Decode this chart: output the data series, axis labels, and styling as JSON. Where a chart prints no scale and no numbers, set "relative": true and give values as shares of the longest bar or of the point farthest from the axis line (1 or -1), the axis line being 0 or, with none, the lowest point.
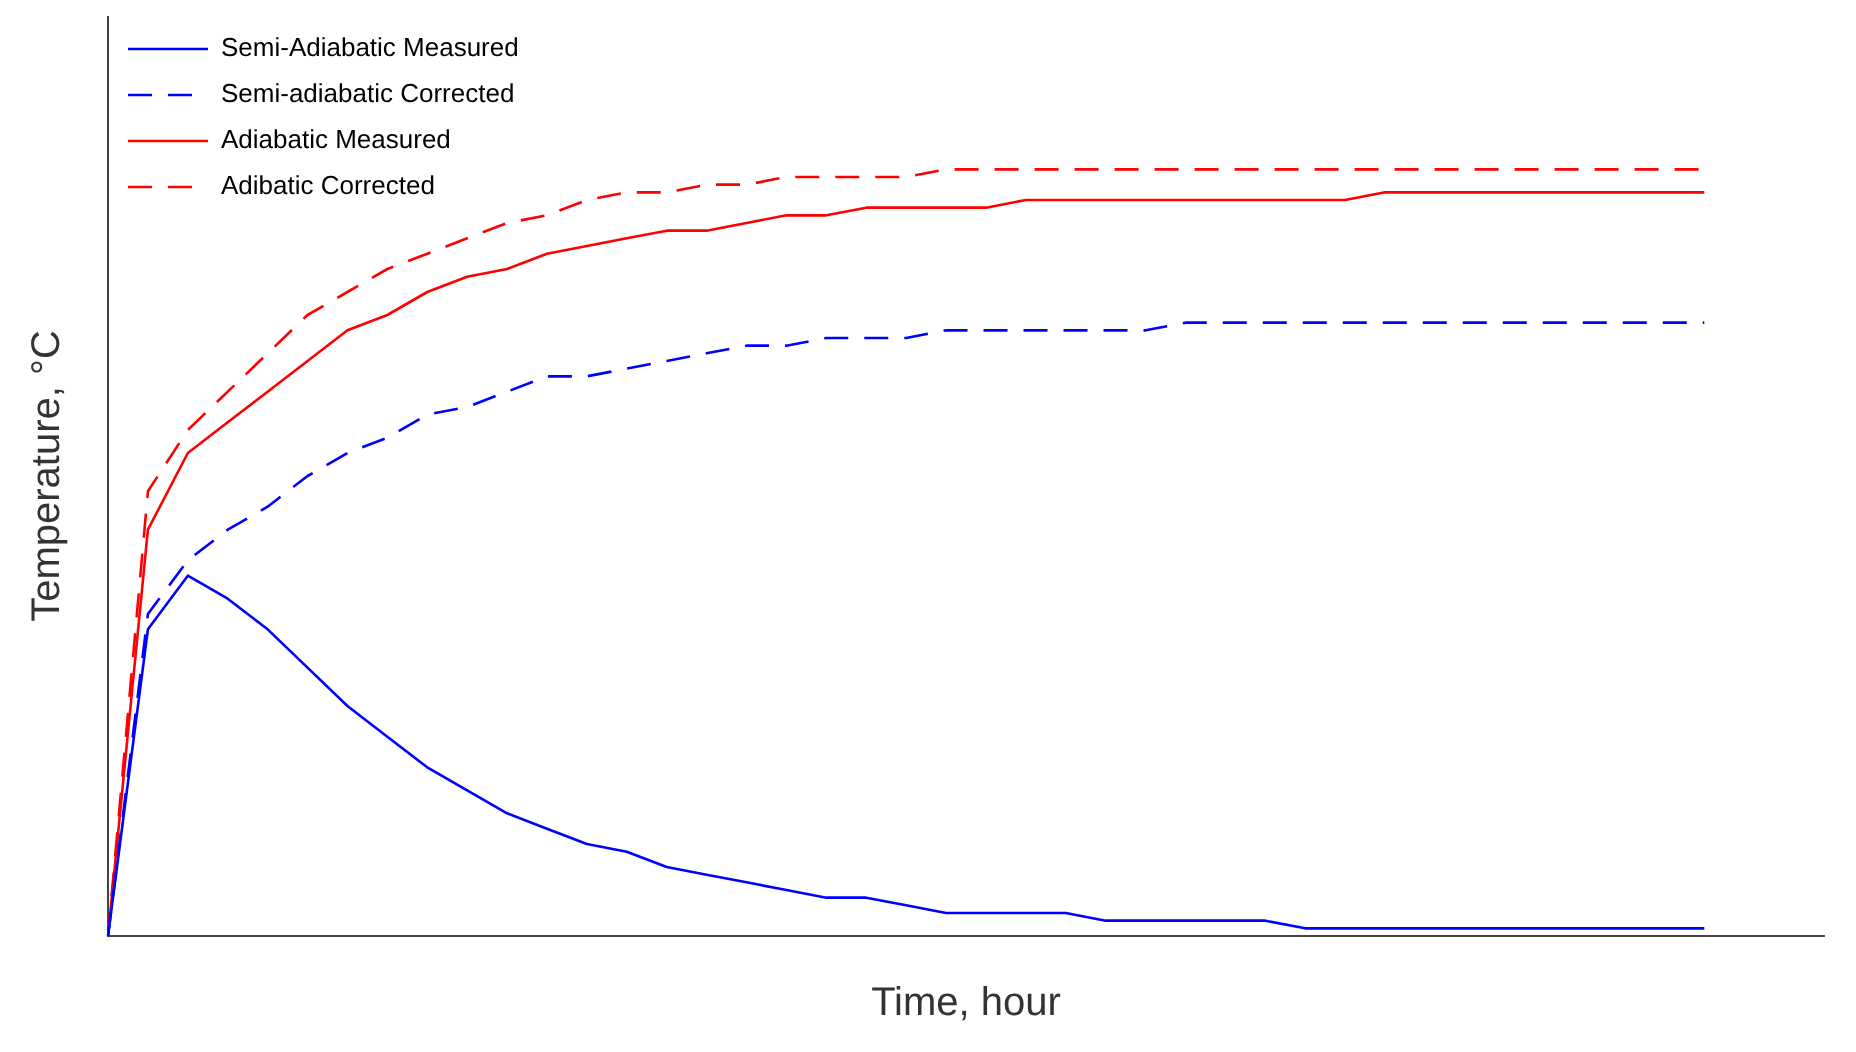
{
  "chart_data": {
    "type": "line",
    "relative": true,
    "xlabel": "Time, hour",
    "ylabel": "Temperature, °C",
    "legend": "top left",
    "grid": false,
    "marker": "none",
    "categories": [
      null,
      null,
      null,
      null,
      null,
      null,
      null,
      null,
      null,
      null,
      null,
      null,
      null,
      null,
      null,
      null,
      null,
      null,
      null,
      null,
      null,
      null,
      null,
      null,
      null,
      null,
      null,
      null,
      null,
      null,
      null,
      null,
      null,
      null,
      null,
      null,
      null,
      null,
      null,
      null,
      null,
      null,
      null,
      null
    ],
    "series": [
      {
        "name": "Semi-Adiabatic Measured",
        "color": "#0000ff",
        "line_style": "solid",
        "values": [
          0,
          0.4,
          0.47,
          0.44,
          0.4,
          0.35,
          0.3,
          0.26,
          0.22,
          0.19,
          0.16,
          0.14,
          0.12,
          0.11,
          0.09,
          0.08,
          0.07,
          0.06,
          0.05,
          0.05,
          0.04,
          0.03,
          0.03,
          0.03,
          0.03,
          0.02,
          0.02,
          0.02,
          0.02,
          0.02,
          0.01,
          0.01,
          0.01,
          0.01,
          0.01,
          0.01,
          0.01,
          0.01,
          0.01,
          0.01,
          0.01,
          null,
          null,
          null
        ]
      },
      {
        "name": "Semi-adiabatic Corrected",
        "color": "#0000ff",
        "line_style": "dashed",
        "values": [
          0,
          0.42,
          0.49,
          0.53,
          0.56,
          0.6,
          0.63,
          0.65,
          0.68,
          0.69,
          0.71,
          0.73,
          0.73,
          0.74,
          0.75,
          0.76,
          0.77,
          0.77,
          0.78,
          0.78,
          0.78,
          0.79,
          0.79,
          0.79,
          0.79,
          0.79,
          0.79,
          0.8,
          0.8,
          0.8,
          0.8,
          0.8,
          0.8,
          0.8,
          0.8,
          0.8,
          0.8,
          0.8,
          0.8,
          0.8,
          0.8,
          null,
          null,
          null
        ]
      },
      {
        "name": "Adiabatic Measured",
        "color": "#ff0000",
        "line_style": "solid",
        "values": [
          0,
          0.53,
          0.63,
          0.67,
          0.71,
          0.75,
          0.79,
          0.81,
          0.84,
          0.86,
          0.87,
          0.89,
          0.9,
          0.91,
          0.92,
          0.92,
          0.93,
          0.94,
          0.94,
          0.95,
          0.95,
          0.95,
          0.95,
          0.96,
          0.96,
          0.96,
          0.96,
          0.96,
          0.96,
          0.96,
          0.96,
          0.96,
          0.97,
          0.97,
          0.97,
          0.97,
          0.97,
          0.97,
          0.97,
          0.97,
          0.97,
          null,
          null,
          null
        ]
      },
      {
        "name": "Adibatic Corrected",
        "color": "#ff0000",
        "line_style": "dashed",
        "values": [
          0,
          0.58,
          0.66,
          0.71,
          0.76,
          0.81,
          0.84,
          0.87,
          0.89,
          0.91,
          0.93,
          0.94,
          0.96,
          0.97,
          0.97,
          0.98,
          0.98,
          0.99,
          0.99,
          0.99,
          0.99,
          1,
          1,
          1,
          1,
          1,
          1,
          1,
          1,
          1,
          1,
          1,
          1,
          1,
          1,
          1,
          1,
          1,
          1,
          1,
          1,
          null,
          null,
          null
        ]
      }
    ]
  }
}
